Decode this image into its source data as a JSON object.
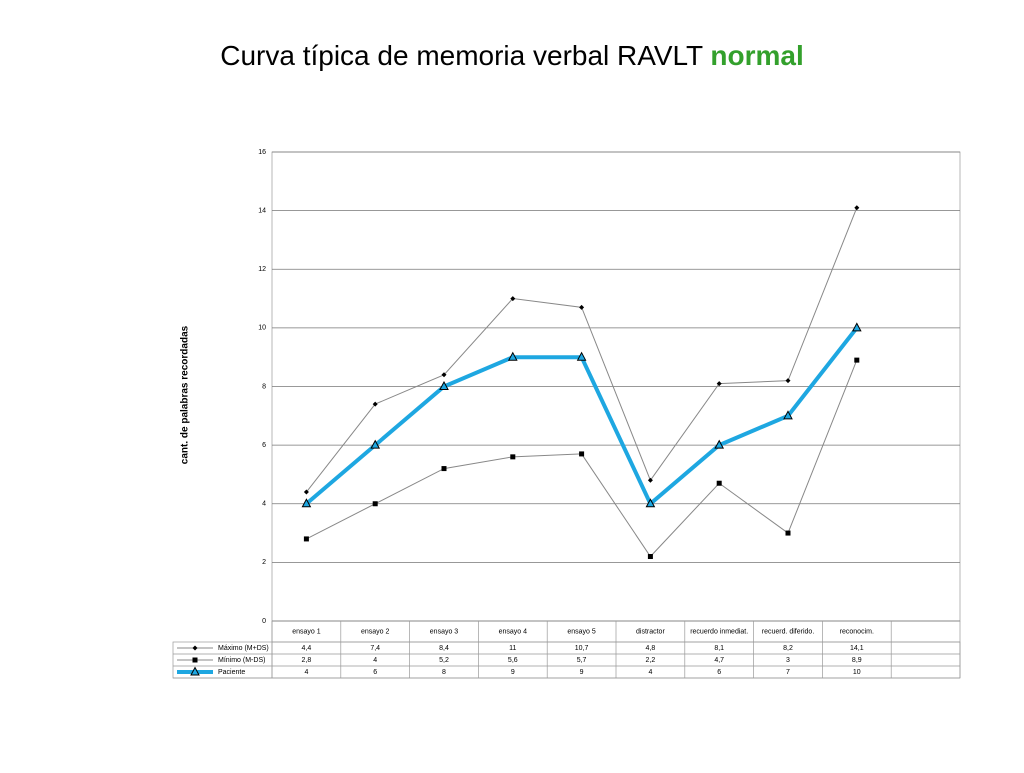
{
  "chart_data": {
    "type": "line",
    "title": "Curva típica de memoria verbal  RAVLT",
    "title_highlight": "normal",
    "title_highlight_color": "#33a02c",
    "y_label": "cant. de palabras recordadas",
    "categories": [
      "ensayo 1",
      "ensayo 2",
      "ensayo 3",
      "ensayo 4",
      "ensayo 5",
      "distractor",
      "recuerdo inmediat.",
      "recuerd. diferido.",
      "reconocim."
    ],
    "series": [
      {
        "name": "Máximo (M+DS)",
        "color": "#888888",
        "marker": "diamond",
        "width": 1,
        "values": [
          4.4,
          7.4,
          8.4,
          11,
          10.7,
          4.8,
          8.1,
          8.2,
          14.1
        ],
        "value_labels": [
          "4,4",
          "7,4",
          "8,4",
          "11",
          "10,7",
          "4,8",
          "8,1",
          "8,2",
          "14,1"
        ]
      },
      {
        "name": "Mínimo (M-DS)",
        "color": "#888888",
        "marker": "square",
        "width": 1,
        "values": [
          2.8,
          4,
          5.2,
          5.6,
          5.7,
          2.2,
          4.7,
          3,
          8.9
        ],
        "value_labels": [
          "2,8",
          "4",
          "5,2",
          "5,6",
          "5,7",
          "2,2",
          "4,7",
          "3",
          "8,9"
        ]
      },
      {
        "name": "Paciente",
        "color": "#1ea7e1",
        "marker": "triangle",
        "width": 4,
        "values": [
          4,
          6,
          8,
          9,
          9,
          4,
          6,
          7,
          10
        ]
      }
    ],
    "ylim": [
      0,
      16
    ],
    "yticks": [
      0,
      2,
      4,
      6,
      8,
      10,
      12,
      14,
      16
    ],
    "grid": true
  }
}
